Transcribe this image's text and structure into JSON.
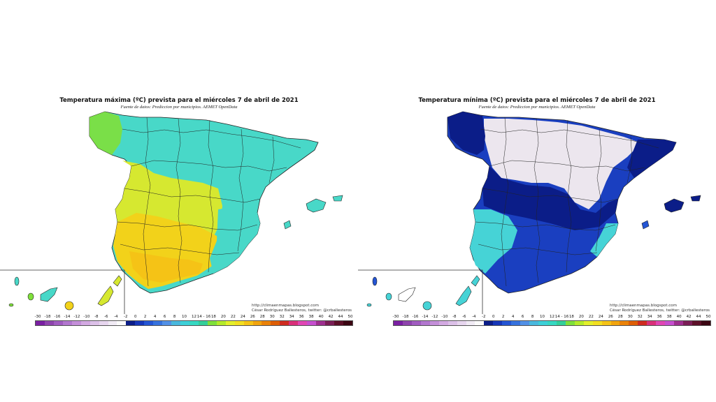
{
  "colors": {
    "scale": [
      "#7a1fa2",
      "#8e44ad",
      "#a05cc0",
      "#b277cf",
      "#c48fd9",
      "#d3a9e2",
      "#dcc0e8",
      "#e7d6ef",
      "#f1ebf5",
      "#fbfbfb",
      "#0b1d88",
      "#1636b8",
      "#2455d4",
      "#3672de",
      "#5290e6",
      "#49b8de",
      "#3dd0d8",
      "#36d8c2",
      "#33cf9a",
      "#7fe03a",
      "#b4ea2a",
      "#e3ef2b",
      "#f2df21",
      "#f5c316",
      "#f1a40e",
      "#ea8208",
      "#de5e06",
      "#cf2b20",
      "#d9307a",
      "#e046b4",
      "#c64fcf",
      "#9e2f8f",
      "#7a1e56",
      "#5c1028",
      "#3b0612"
    ],
    "max_land": "#48d8c8",
    "max_warm": "#d6e830",
    "max_hot": "#f2d21a",
    "min_land": "#1a3fc0",
    "min_cold": "#0b1d88",
    "min_frost": "#ece6ee",
    "min_mild": "#46d3d6",
    "border_line": "#222222"
  },
  "legend_ticks": [
    "-30",
    "-18",
    "-16",
    "-14",
    "-12",
    "-10",
    "-8",
    "-6",
    "-4",
    "-2",
    "0",
    "2",
    "4",
    "6",
    "8",
    "10",
    "12",
    "14 - 16",
    "18",
    "20",
    "22",
    "24",
    "26",
    "28",
    "30",
    "32",
    "34",
    "36",
    "38",
    "40",
    "42",
    "44",
    "50"
  ],
  "panels": [
    {
      "id": "max",
      "title": "Temperatura máxima (ºC) prevista para el miércoles 7 de abril de 2021",
      "subtitle": "Fuente de datos: Prediccion por municipios. AEMET OpenData",
      "credit_url": "http://climaenmapas.blogspot.com",
      "credit_author": "César Rodríguez Ballesteros, twitter: @crballesteros"
    },
    {
      "id": "min",
      "title": "Temperatura mínima (ºC) prevista para el miércoles 7 de abril de 2021",
      "subtitle": "Fuente de datos: Prediccion por municipios. AEMET OpenData",
      "credit_url": "http://climaenmapas.blogspot.com",
      "credit_author": "César Rodríguez Ballesteros, twitter: @crballesteros"
    }
  ]
}
